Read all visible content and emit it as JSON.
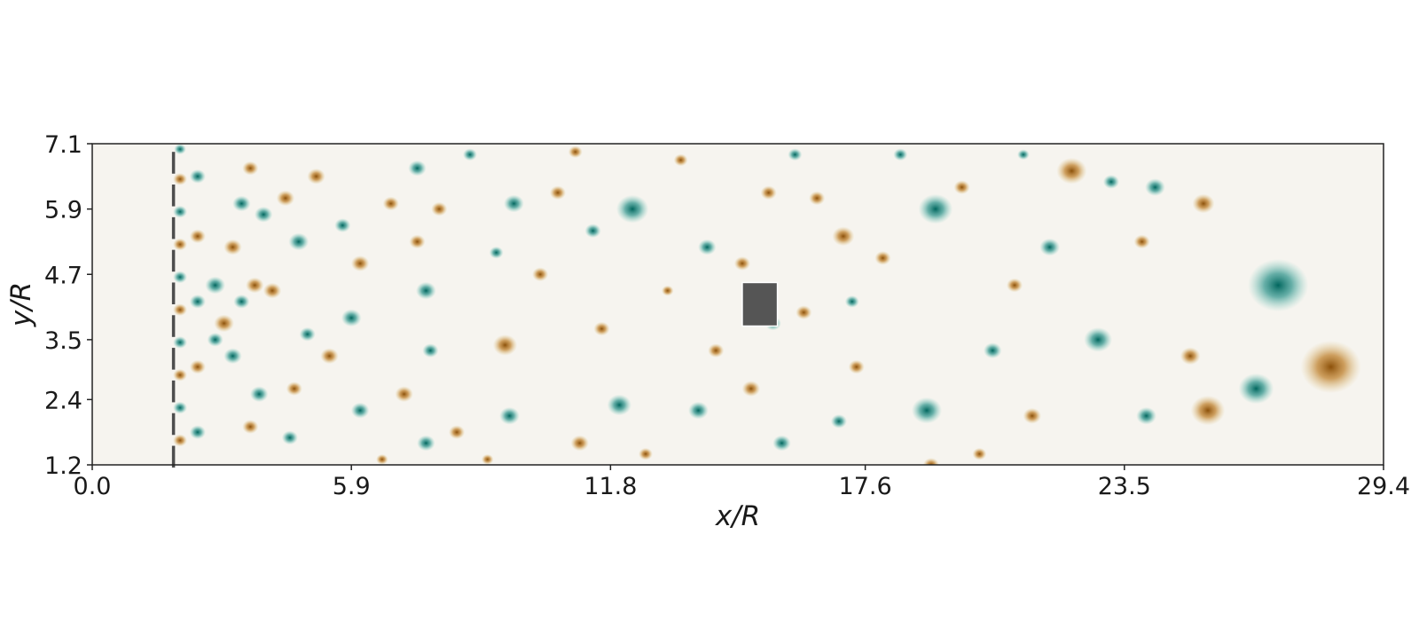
{
  "chart_data": {
    "type": "heatmap",
    "field": "vorticity-like contour field (diverging brown / white / teal)",
    "xlabel": "x/R",
    "ylabel": "y/R",
    "xlim": [
      0.0,
      29.4
    ],
    "ylim": [
      1.2,
      7.1
    ],
    "x_ticks": [
      "0.0",
      "5.9",
      "11.8",
      "17.6",
      "23.5",
      "29.4"
    ],
    "y_ticks": [
      "1.2",
      "2.4",
      "3.5",
      "4.7",
      "5.9",
      "7.1"
    ],
    "grid": false,
    "colors": {
      "positive": "#8c510a",
      "neutral": "#f6f4ef",
      "negative": "#01665e",
      "obstacle": "#555555",
      "bar": "#4d4d4d"
    },
    "obstacle": {
      "x_center": 15.2,
      "y_center": 4.15,
      "size": 0.8
    },
    "grid_bars_x": 1.85,
    "grid_bars_y": [
      6.75,
      6.15,
      5.55,
      4.95,
      4.35,
      3.75,
      3.15,
      2.55,
      1.95,
      1.35
    ],
    "grid_bars_length": 0.4,
    "vortices": [
      [
        2.0,
        7.0,
        -1,
        0.12
      ],
      [
        2.0,
        6.45,
        1,
        0.14
      ],
      [
        2.0,
        5.85,
        -1,
        0.14
      ],
      [
        2.0,
        5.25,
        1,
        0.14
      ],
      [
        2.0,
        4.65,
        -1,
        0.14
      ],
      [
        2.0,
        4.05,
        1,
        0.14
      ],
      [
        2.0,
        3.45,
        -1,
        0.14
      ],
      [
        2.0,
        2.85,
        1,
        0.14
      ],
      [
        2.0,
        2.25,
        -1,
        0.14
      ],
      [
        2.0,
        1.65,
        1,
        0.14
      ],
      [
        2.4,
        6.5,
        -1,
        0.16
      ],
      [
        2.4,
        5.4,
        1,
        0.16
      ],
      [
        2.4,
        4.2,
        -1,
        0.16
      ],
      [
        2.4,
        3.0,
        1,
        0.16
      ],
      [
        2.4,
        1.8,
        -1,
        0.16
      ],
      [
        3.6,
        6.65,
        1,
        0.16
      ],
      [
        3.4,
        6.0,
        -1,
        0.18
      ],
      [
        3.2,
        5.2,
        1,
        0.18
      ],
      [
        2.8,
        4.5,
        -1,
        0.2
      ],
      [
        3.7,
        4.5,
        1,
        0.18
      ],
      [
        3.4,
        4.2,
        -1,
        0.16
      ],
      [
        3.0,
        3.8,
        1,
        0.2
      ],
      [
        3.2,
        3.2,
        -1,
        0.18
      ],
      [
        2.8,
        3.5,
        -1,
        0.16
      ],
      [
        3.8,
        2.5,
        -1,
        0.18
      ],
      [
        3.9,
        5.8,
        -1,
        0.18
      ],
      [
        4.4,
        6.1,
        1,
        0.18
      ],
      [
        4.7,
        5.3,
        -1,
        0.2
      ],
      [
        4.1,
        4.4,
        1,
        0.18
      ],
      [
        4.9,
        3.6,
        -1,
        0.16
      ],
      [
        4.6,
        2.6,
        1,
        0.16
      ],
      [
        5.4,
        3.2,
        1,
        0.18
      ],
      [
        5.9,
        3.9,
        -1,
        0.2
      ],
      [
        6.1,
        4.9,
        1,
        0.18
      ],
      [
        5.7,
        5.6,
        -1,
        0.16
      ],
      [
        4.5,
        1.7,
        -1,
        0.16
      ],
      [
        3.6,
        1.9,
        1,
        0.16
      ],
      [
        5.1,
        6.5,
        1,
        0.18
      ],
      [
        6.1,
        2.2,
        -1,
        0.18
      ],
      [
        6.8,
        6.0,
        1,
        0.16
      ],
      [
        7.4,
        6.65,
        -1,
        0.18
      ],
      [
        7.1,
        2.5,
        1,
        0.18
      ],
      [
        7.4,
        5.3,
        1,
        0.16
      ],
      [
        7.6,
        4.4,
        -1,
        0.2
      ],
      [
        7.7,
        3.3,
        -1,
        0.16
      ],
      [
        7.6,
        1.6,
        -1,
        0.18
      ],
      [
        7.9,
        5.9,
        1,
        0.16
      ],
      [
        8.3,
        1.8,
        1,
        0.16
      ],
      [
        9.4,
        3.4,
        1,
        0.24
      ],
      [
        9.5,
        2.1,
        -1,
        0.2
      ],
      [
        9.6,
        6.0,
        -1,
        0.2
      ],
      [
        10.2,
        4.7,
        1,
        0.16
      ],
      [
        9.2,
        5.1,
        -1,
        0.14
      ],
      [
        11.1,
        1.6,
        1,
        0.18
      ],
      [
        10.6,
        6.2,
        1,
        0.16
      ],
      [
        11.4,
        5.5,
        -1,
        0.16
      ],
      [
        11.6,
        3.7,
        1,
        0.16
      ],
      [
        12.3,
        5.9,
        -1,
        0.32
      ],
      [
        12.0,
        2.3,
        -1,
        0.24
      ],
      [
        13.1,
        4.4,
        1,
        0.12
      ],
      [
        13.8,
        2.2,
        -1,
        0.2
      ],
      [
        14.0,
        5.2,
        -1,
        0.18
      ],
      [
        14.2,
        3.3,
        1,
        0.16
      ],
      [
        14.8,
        4.9,
        1,
        0.16
      ],
      [
        15.0,
        2.6,
        1,
        0.18
      ],
      [
        15.5,
        3.8,
        -1,
        0.16
      ],
      [
        16.2,
        4.0,
        1,
        0.16
      ],
      [
        15.4,
        6.2,
        1,
        0.16
      ],
      [
        15.7,
        1.6,
        -1,
        0.18
      ],
      [
        16.5,
        6.1,
        1,
        0.16
      ],
      [
        17.1,
        5.4,
        1,
        0.22
      ],
      [
        17.4,
        3.0,
        1,
        0.16
      ],
      [
        17.0,
        2.0,
        -1,
        0.16
      ],
      [
        17.3,
        4.2,
        -1,
        0.14
      ],
      [
        18.0,
        5.0,
        1,
        0.16
      ],
      [
        19.0,
        2.2,
        -1,
        0.3
      ],
      [
        19.2,
        5.9,
        -1,
        0.34
      ],
      [
        19.8,
        6.3,
        1,
        0.16
      ],
      [
        19.1,
        1.2,
        1,
        0.16
      ],
      [
        20.5,
        3.3,
        -1,
        0.18
      ],
      [
        21.0,
        4.5,
        1,
        0.16
      ],
      [
        21.4,
        2.1,
        1,
        0.18
      ],
      [
        21.8,
        5.2,
        -1,
        0.2
      ],
      [
        22.3,
        6.6,
        1,
        0.3
      ],
      [
        22.9,
        3.5,
        -1,
        0.28
      ],
      [
        23.2,
        6.4,
        -1,
        0.16
      ],
      [
        24.0,
        2.1,
        -1,
        0.2
      ],
      [
        23.9,
        5.3,
        1,
        0.16
      ],
      [
        24.2,
        6.3,
        -1,
        0.2
      ],
      [
        25.0,
        3.2,
        1,
        0.2
      ],
      [
        25.3,
        6.0,
        1,
        0.22
      ],
      [
        25.4,
        2.2,
        1,
        0.34
      ],
      [
        26.5,
        2.6,
        -1,
        0.35
      ],
      [
        27.0,
        4.5,
        -1,
        0.6
      ],
      [
        28.2,
        3.0,
        1,
        0.6
      ],
      [
        6.6,
        1.3,
        1,
        0.12
      ],
      [
        9.0,
        1.3,
        1,
        0.12
      ],
      [
        12.6,
        1.4,
        1,
        0.14
      ],
      [
        13.4,
        6.8,
        1,
        0.14
      ],
      [
        16.0,
        6.9,
        -1,
        0.14
      ],
      [
        18.4,
        6.9,
        -1,
        0.14
      ],
      [
        20.2,
        1.4,
        1,
        0.14
      ],
      [
        8.6,
        6.9,
        -1,
        0.14
      ],
      [
        11.0,
        6.95,
        1,
        0.14
      ],
      [
        21.2,
        6.9,
        -1,
        0.12
      ]
    ]
  }
}
